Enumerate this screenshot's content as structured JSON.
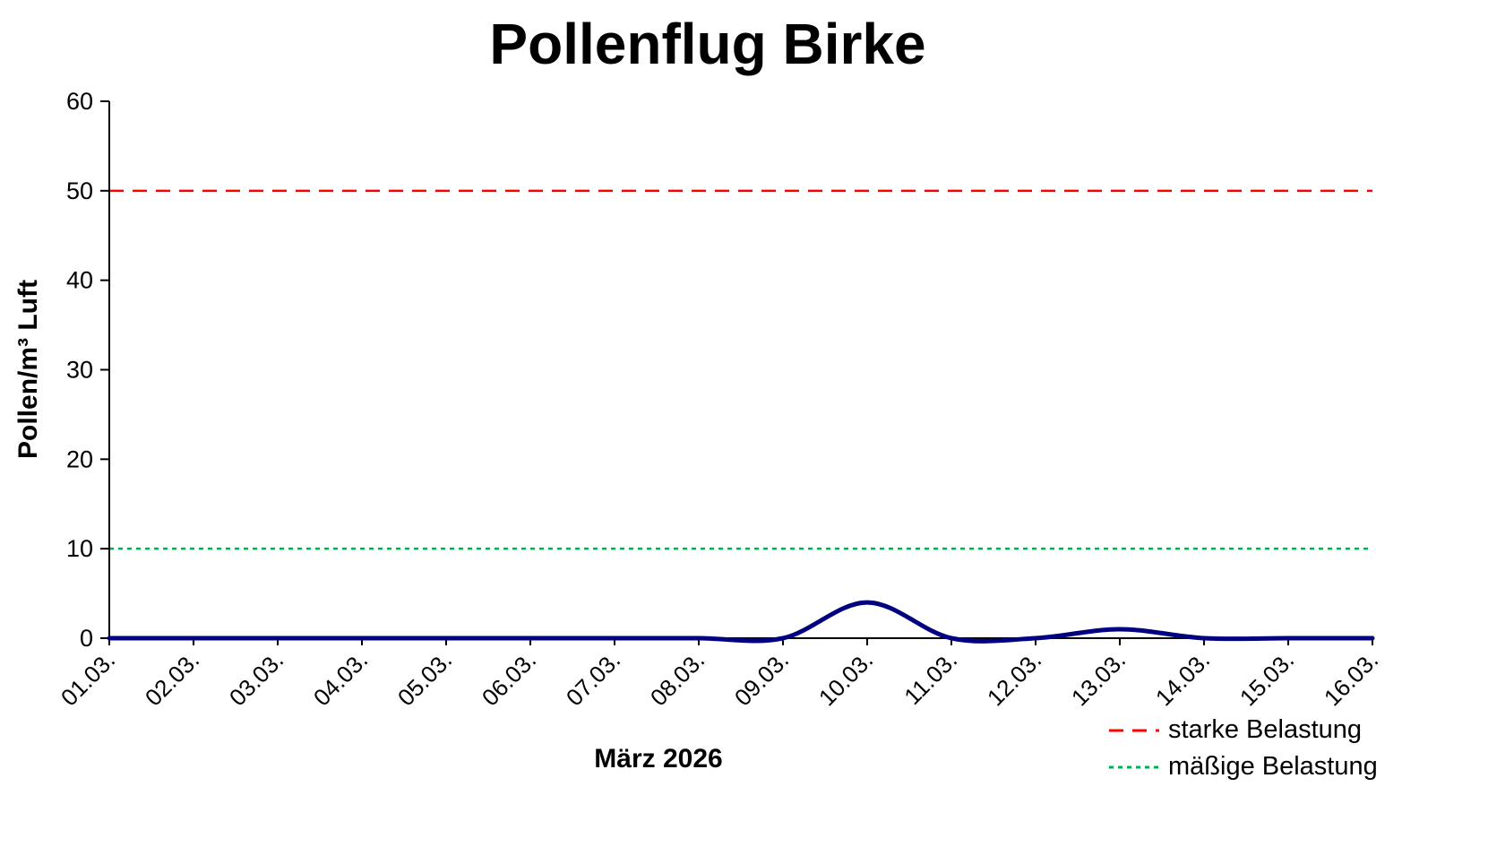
{
  "chart_data": {
    "type": "line",
    "title": "Pollenflug Birke",
    "xlabel": "März 2026",
    "ylabel": "Pollen/m³ Luft",
    "ylim": [
      0,
      60
    ],
    "yticks": [
      0,
      10,
      20,
      30,
      40,
      50,
      60
    ],
    "categories": [
      "01.03.",
      "02.03.",
      "03.03.",
      "04.03.",
      "05.03.",
      "06.03.",
      "07.03.",
      "08.03.",
      "09.03.",
      "10.03.",
      "11.03.",
      "12.03.",
      "13.03.",
      "14.03.",
      "15.03.",
      "16.03."
    ],
    "series": [
      {
        "color": "#000080",
        "smooth": true,
        "values": [
          0,
          0,
          0,
          0,
          0,
          0,
          0,
          0,
          0,
          4,
          0,
          0,
          1,
          0,
          0,
          0
        ]
      }
    ],
    "reference_lines": [
      {
        "label": "starke Belastung",
        "value": 50,
        "color": "#FF0000",
        "dash": "long"
      },
      {
        "label": "mäßige Belastung",
        "value": 10,
        "color": "#00B050",
        "dash": "short"
      }
    ],
    "legend_position": "bottom-right",
    "grid": false,
    "axis_color": "#000000"
  }
}
